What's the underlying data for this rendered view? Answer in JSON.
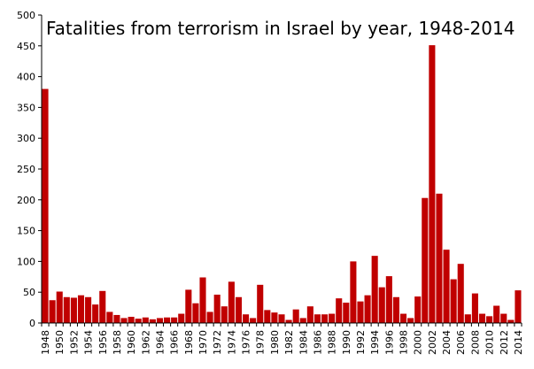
{
  "chart_data": {
    "type": "bar",
    "title": "Fatalities from terrorism in Israel by year, 1948-2014",
    "xlabel": "",
    "ylabel": "",
    "ylim": [
      0,
      500
    ],
    "yticks": [
      0,
      50,
      100,
      150,
      200,
      250,
      300,
      350,
      400,
      450,
      500
    ],
    "grid": false,
    "bar_color": "#c00000",
    "categories": [
      "1948",
      "1949",
      "1950",
      "1951",
      "1952",
      "1953",
      "1954",
      "1955",
      "1956",
      "1957",
      "1958",
      "1959",
      "1960",
      "1961",
      "1962",
      "1963",
      "1964",
      "1965",
      "1966",
      "1967",
      "1968",
      "1969",
      "1970",
      "1971",
      "1972",
      "1973",
      "1974",
      "1975",
      "1976",
      "1977",
      "1978",
      "1979",
      "1980",
      "1981",
      "1982",
      "1983",
      "1984",
      "1985",
      "1986",
      "1987",
      "1988",
      "1989",
      "1990",
      "1991",
      "1992",
      "1993",
      "1994",
      "1995",
      "1996",
      "1997",
      "1998",
      "1999",
      "2000",
      "2001",
      "2002",
      "2003",
      "2004",
      "2005",
      "2006",
      "2007",
      "2008",
      "2009",
      "2010",
      "2011",
      "2012",
      "2013",
      "2014"
    ],
    "xtick_labels": [
      "1948",
      "1950",
      "1952",
      "1954",
      "1956",
      "1958",
      "1960",
      "1962",
      "1964",
      "1966",
      "1968",
      "1970",
      "1972",
      "1974",
      "1976",
      "1978",
      "1980",
      "1982",
      "1984",
      "1986",
      "1988",
      "1990",
      "1992",
      "1994",
      "1996",
      "1998",
      "2000",
      "2002",
      "2004",
      "2006",
      "2008",
      "2010",
      "2012",
      "2014"
    ],
    "values": [
      380,
      37,
      51,
      42,
      41,
      45,
      42,
      30,
      52,
      18,
      13,
      8,
      10,
      7,
      9,
      6,
      8,
      9,
      9,
      15,
      54,
      32,
      74,
      18,
      46,
      27,
      67,
      42,
      14,
      8,
      62,
      21,
      17,
      14,
      5,
      22,
      8,
      27,
      14,
      14,
      15,
      40,
      33,
      100,
      35,
      45,
      109,
      58,
      76,
      42,
      15,
      8,
      43,
      203,
      451,
      210,
      119,
      71,
      96,
      14,
      48,
      15,
      11,
      28,
      15,
      5,
      53
    ]
  }
}
